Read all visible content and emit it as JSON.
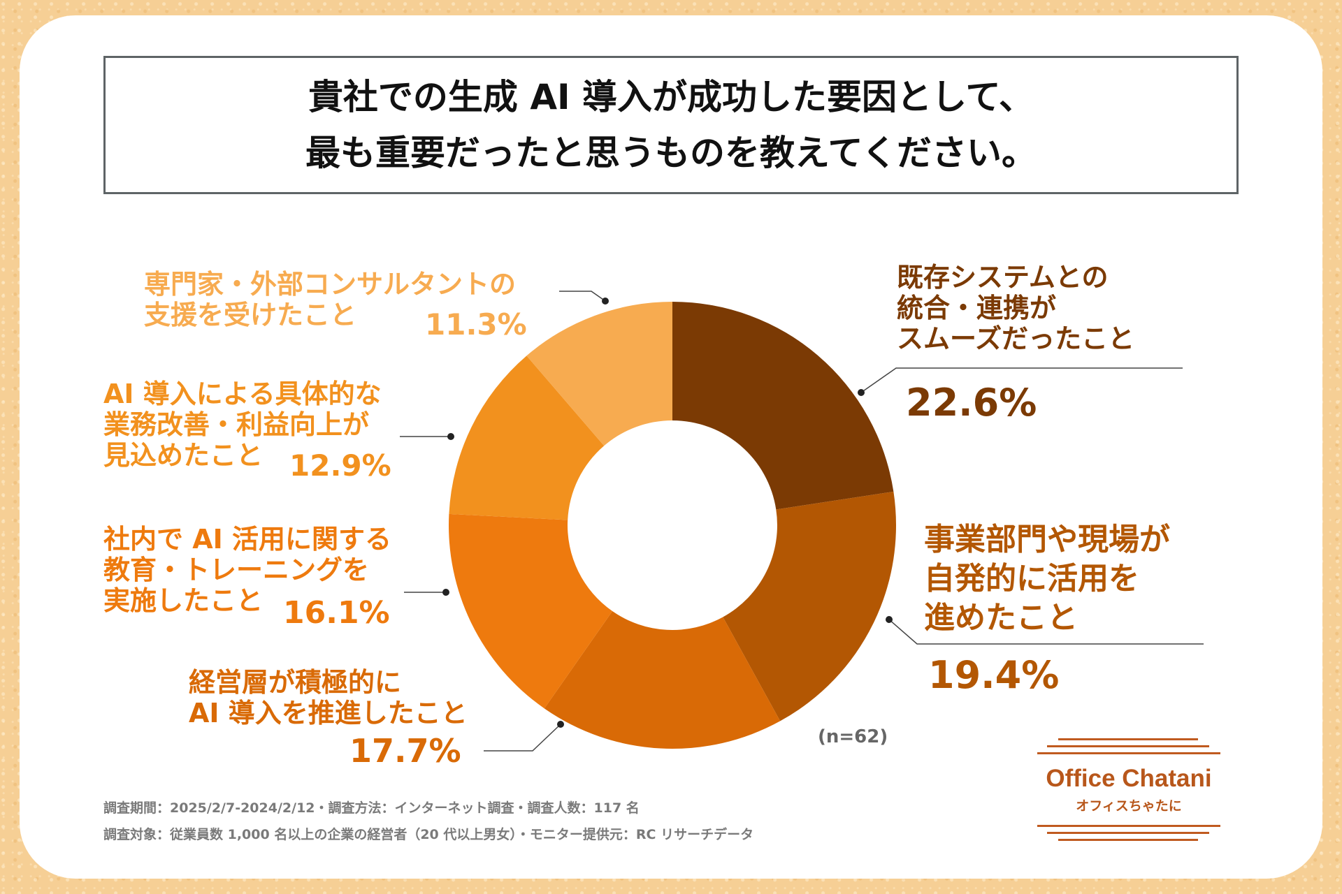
{
  "title": {
    "line1": "貴社での生成 AI 導入が成功した要因として、",
    "line2": "最も重要だったと思うものを教えてください。"
  },
  "chart_data": {
    "type": "pie",
    "donut": true,
    "title": "貴社での生成 AI 導入が成功した要因として、最も重要だったと思うものを教えてください。",
    "sample_size": "(n=62)",
    "slices": [
      {
        "label": "既存システムとの統合・連携がスムーズだったこと",
        "lines": [
          "既存システムとの",
          "統合・連携が",
          "スムーズだったこと"
        ],
        "value": 22.6,
        "display": "22.6%",
        "color": "#7b3a04"
      },
      {
        "label": "事業部門や現場が自発的に活用を進めたこと",
        "lines": [
          "事業部門や現場が",
          "自発的に活用を",
          "進めたこと"
        ],
        "value": 19.4,
        "display": "19.4%",
        "color": "#b35703"
      },
      {
        "label": "経営層が積極的に AI 導入を推進したこと",
        "lines": [
          "経営層が積極的に",
          "AI 導入を推進したこと"
        ],
        "value": 17.7,
        "display": "17.7%",
        "color": "#d96a06"
      },
      {
        "label": "社内で AI 活用に関する教育・トレーニングを実施したこと",
        "lines": [
          "社内で AI 活用に関する",
          "教育・トレーニングを",
          "実施したこと"
        ],
        "value": 16.1,
        "display": "16.1%",
        "color": "#ee7a0e"
      },
      {
        "label": "AI 導入による具体的な業務改善・利益向上が見込めたこと",
        "lines": [
          "AI 導入による具体的な",
          "業務改善・利益向上が",
          "見込めたこと"
        ],
        "value": 12.9,
        "display": "12.9%",
        "color": "#f2911e"
      },
      {
        "label": "専門家・外部コンサルタントの支援を受けたこと",
        "lines": [
          "専門家・外部コンサルタントの",
          "支援を受けたこと"
        ],
        "value": 11.3,
        "display": "11.3%",
        "color": "#f7ab50"
      }
    ]
  },
  "footer": {
    "line1": "調査期間：2025/2/7-2024/2/12・調査方法：インターネット調査・調査人数：117 名",
    "line2": "調査対象：従業員数 1,000 名以上の企業の経営者（20 代以上男女）・モニター提供元：RC リサーチデータ"
  },
  "logo": {
    "name": "Office Chatani",
    "sub": "オフィスちゃたに",
    "color": "#b8571b"
  }
}
